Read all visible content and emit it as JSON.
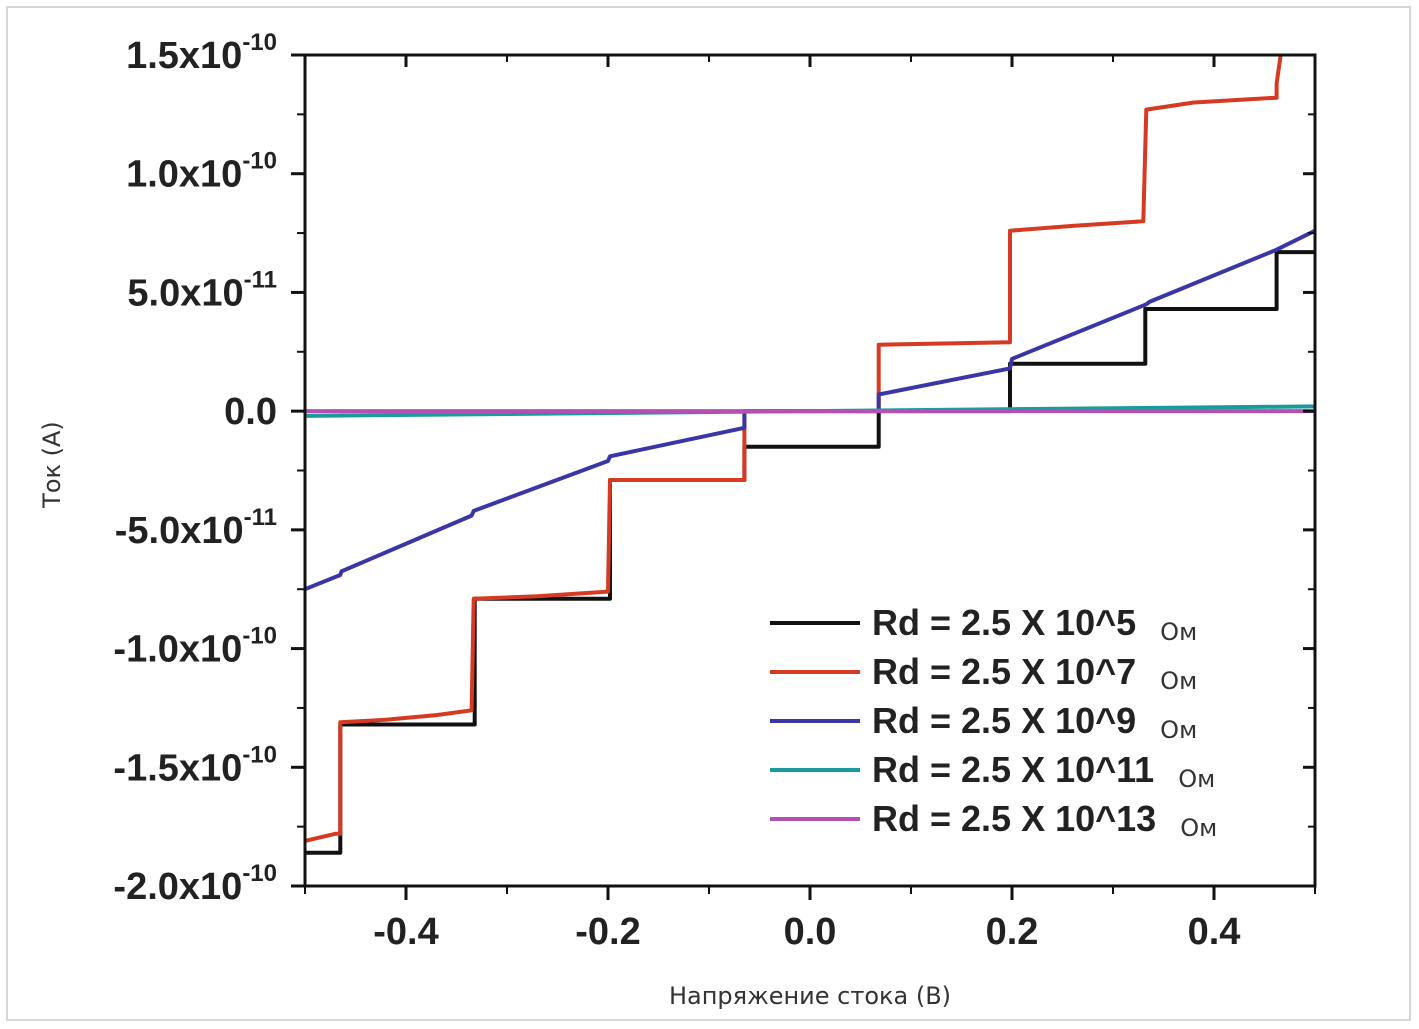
{
  "chart_data": {
    "type": "line",
    "xlabel": "Напряжение стока (В)",
    "ylabel": "Ток (А)",
    "xlim": [
      -0.5,
      0.5
    ],
    "ylim": [
      -2e-10,
      1.5e-10
    ],
    "x_ticks": [
      {
        "value": -0.4,
        "label": "-0.4"
      },
      {
        "value": -0.2,
        "label": "-0.2"
      },
      {
        "value": 0.0,
        "label": "0.0"
      },
      {
        "value": 0.2,
        "label": "0.2"
      },
      {
        "value": 0.4,
        "label": "0.4"
      }
    ],
    "y_ticks": [
      {
        "value": 1.5e-10,
        "mantissa": "1.5x10",
        "exp": "-10"
      },
      {
        "value": 1e-10,
        "mantissa": "1.0x10",
        "exp": "-10"
      },
      {
        "value": 5e-11,
        "mantissa": "5.0x10",
        "exp": "-11"
      },
      {
        "value": 0,
        "mantissa": "0.0",
        "exp": ""
      },
      {
        "value": -5e-11,
        "mantissa": "-5.0x10",
        "exp": "-11"
      },
      {
        "value": -1e-10,
        "mantissa": "-1.0x10",
        "exp": "-10"
      },
      {
        "value": -1.5e-10,
        "mantissa": "-1.5x10",
        "exp": "-10"
      },
      {
        "value": -2e-10,
        "mantissa": "-2.0x10",
        "exp": "-10"
      }
    ],
    "grid": false,
    "legend_position": "bottom-right",
    "series": [
      {
        "name": "Rd = 2.5 X 10^5",
        "unit": "Ом",
        "color": "#111111",
        "points": [
          [
            -0.5,
            -1.86e-10
          ],
          [
            -0.465,
            -1.86e-10
          ],
          [
            -0.465,
            -1.32e-10
          ],
          [
            -0.332,
            -1.32e-10
          ],
          [
            -0.332,
            -7.9e-11
          ],
          [
            -0.198,
            -7.9e-11
          ],
          [
            -0.198,
            -2.9e-11
          ],
          [
            -0.065,
            -2.9e-11
          ],
          [
            -0.065,
            -1.5e-11
          ],
          [
            0.068,
            -1.5e-11
          ],
          [
            0.068,
            0.0
          ],
          [
            0.198,
            0.0
          ],
          [
            0.198,
            2e-11
          ],
          [
            0.332,
            2e-11
          ],
          [
            0.332,
            4.3e-11
          ],
          [
            0.462,
            4.3e-11
          ],
          [
            0.462,
            6.7e-11
          ],
          [
            0.5,
            6.7e-11
          ]
        ]
      },
      {
        "name": "Rd = 2.5 X 10^7",
        "unit": "Ом",
        "color": "#d63a22",
        "points": [
          [
            -0.5,
            -1.81e-10
          ],
          [
            -0.47,
            -1.78e-10
          ],
          [
            -0.465,
            -1.78e-10
          ],
          [
            -0.465,
            -1.31e-10
          ],
          [
            -0.42,
            -1.3e-10
          ],
          [
            -0.37,
            -1.28e-10
          ],
          [
            -0.335,
            -1.26e-10
          ],
          [
            -0.333,
            -7.9e-11
          ],
          [
            -0.27,
            -7.8e-11
          ],
          [
            -0.2,
            -7.6e-11
          ],
          [
            -0.198,
            -2.9e-11
          ],
          [
            -0.065,
            -2.9e-11
          ],
          [
            -0.065,
            0.0
          ],
          [
            0.068,
            0.0
          ],
          [
            0.068,
            2.8e-11
          ],
          [
            0.198,
            2.9e-11
          ],
          [
            0.198,
            7.6e-11
          ],
          [
            0.26,
            7.8e-11
          ],
          [
            0.33,
            8e-11
          ],
          [
            0.333,
            1.27e-10
          ],
          [
            0.38,
            1.3e-10
          ],
          [
            0.462,
            1.32e-10
          ],
          [
            0.462,
            1.38e-10
          ],
          [
            0.466,
            1.5e-10
          ]
        ]
      },
      {
        "name": "Rd = 2.5 X 10^9",
        "unit": "Ом",
        "color": "#3a36a6",
        "points": [
          [
            -0.5,
            -7.5e-11
          ],
          [
            -0.465,
            -6.9e-11
          ],
          [
            -0.464,
            -6.75e-11
          ],
          [
            -0.335,
            -4.4e-11
          ],
          [
            -0.333,
            -4.2e-11
          ],
          [
            -0.2,
            -2.1e-11
          ],
          [
            -0.198,
            -1.9e-11
          ],
          [
            -0.065,
            -7e-12
          ],
          [
            -0.065,
            0.0
          ],
          [
            0.068,
            0.0
          ],
          [
            0.068,
            7e-12
          ],
          [
            0.198,
            1.8e-11
          ],
          [
            0.2,
            2.2e-11
          ],
          [
            0.333,
            4.5e-11
          ],
          [
            0.336,
            4.6e-11
          ],
          [
            0.462,
            6.8e-11
          ],
          [
            0.5,
            7.6e-11
          ]
        ]
      },
      {
        "name": "Rd = 2.5 X 10^11",
        "unit": "Ом",
        "color": "#1a9a9a",
        "points": [
          [
            -0.5,
            -2e-12
          ],
          [
            0.0,
            0.0
          ],
          [
            0.5,
            2e-12
          ]
        ]
      },
      {
        "name": "Rd = 2.5 X 10^13",
        "unit": "Ом",
        "color": "#b44fb4",
        "points": [
          [
            -0.5,
            0.0
          ],
          [
            0.5,
            0.0
          ]
        ]
      }
    ]
  }
}
